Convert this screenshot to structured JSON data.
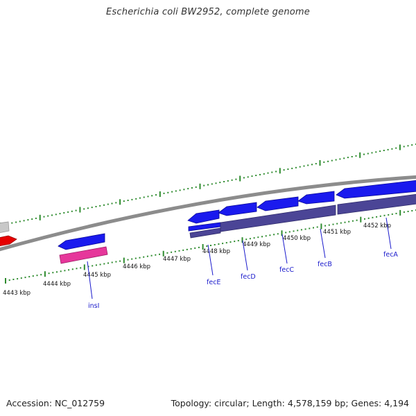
{
  "title": "Escherichia coli BW2952, complete genome",
  "footer": {
    "accession": "Accession: NC_012759",
    "topology_info": "Topology: circular; Length: 4,578,159 bp; Genes: 4,194"
  },
  "colors": {
    "backbone": "#8c8c8c",
    "tick": "#2e8b2e",
    "gene_arrow": "#1a1aee",
    "cds_bar": "#4b4596",
    "insl_bar": "#e6379b",
    "partial_red": "#e60000",
    "partial_gray": "#c8c8c8",
    "label": "#1a1acc"
  },
  "ruler_labels": [
    "4443 kbp",
    "4444 kbp",
    "4445 kbp",
    "4446 kbp",
    "4447 kbp",
    "4448 kbp",
    "4449 kbp",
    "4450 kbp",
    "4451 kbp",
    "4452 kbp"
  ],
  "genes": [
    "insI",
    "fecE",
    "fecD",
    "fecC",
    "fecB",
    "fecA"
  ]
}
